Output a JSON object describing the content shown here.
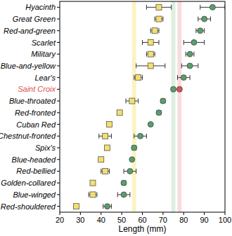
{
  "chart_data": {
    "type": "dot",
    "orientation": "horizontal",
    "x_label": "Length (mm)",
    "categories": [
      "Hyacinth",
      "Great Green",
      "Red-and-green",
      "Scarlet",
      "Military",
      "Blue-and-yellow",
      "Lear's",
      "Saint Croix",
      "Blue-throated",
      "Red-fronted",
      "Cuban Red",
      "Chestnut-fronted",
      "Spix's",
      "Blue-headed",
      "Red-bellied",
      "Golden-collared",
      "Blue-winged",
      "Red-shouldered"
    ],
    "series": [
      {
        "color": "#f3df6c",
        "marker": "square",
        "values": [
          68,
          68,
          66,
          64,
          64,
          64,
          58,
          null,
          55,
          49,
          44,
          42,
          43,
          40,
          42,
          36,
          36,
          28
        ],
        "errors": [
          6,
          2,
          2,
          4,
          2,
          7,
          2,
          null,
          3,
          1,
          1,
          3,
          1,
          0,
          2,
          1,
          2,
          1
        ]
      },
      {
        "color": "#5a9e6e",
        "marker": "circle",
        "values": [
          94,
          90,
          88,
          85,
          83,
          83,
          80,
          75,
          70,
          68,
          64,
          59,
          56,
          55,
          54,
          51,
          51,
          43
        ],
        "errors": [
          6,
          3,
          2,
          5,
          2,
          4,
          3,
          0,
          1,
          1,
          0.5,
          3,
          1,
          0,
          3,
          1,
          3,
          2
        ]
      },
      {
        "color": "#e0504a",
        "marker": "circle",
        "values": [
          null,
          null,
          null,
          null,
          null,
          null,
          null,
          78,
          null,
          null,
          null,
          null,
          null,
          null,
          null,
          null,
          null,
          null
        ]
      }
    ],
    "bands": [
      {
        "from": 55,
        "to": 57,
        "color": "#fbf3c4"
      },
      {
        "from": 74,
        "to": 76,
        "color": "#dcefe0"
      },
      {
        "from": 77,
        "to": 79,
        "color": "#f8dcdc"
      }
    ],
    "xlim": [
      20,
      100
    ],
    "xticks": [
      20,
      30,
      40,
      50,
      60,
      70,
      80,
      90,
      100
    ]
  }
}
